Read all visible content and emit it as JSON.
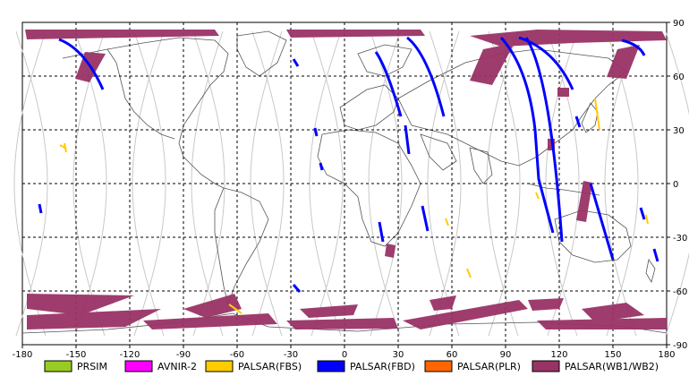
{
  "map": {
    "lon_ticks": [
      "-180",
      "-150",
      "-120",
      "-90",
      "-60",
      "-30",
      "0",
      "30",
      "60",
      "90",
      "120",
      "150",
      "180"
    ],
    "lat_ticks": [
      "90",
      "60",
      "30",
      "0",
      "-30",
      "-60",
      "-90"
    ],
    "grid": true,
    "projection": "equirectangular"
  },
  "legend": [
    {
      "label": "PRSIM",
      "color": "#99cc22"
    },
    {
      "label": "AVNIR-2",
      "color": "#ff00ff"
    },
    {
      "label": "PALSAR(FBS)",
      "color": "#ffcc00"
    },
    {
      "label": "PALSAR(FBD)",
      "color": "#0000ff"
    },
    {
      "label": "PALSAR(PLR)",
      "color": "#ff6600"
    },
    {
      "label": "PALSAR(WB1/WB2)",
      "color": "#993366"
    }
  ]
}
